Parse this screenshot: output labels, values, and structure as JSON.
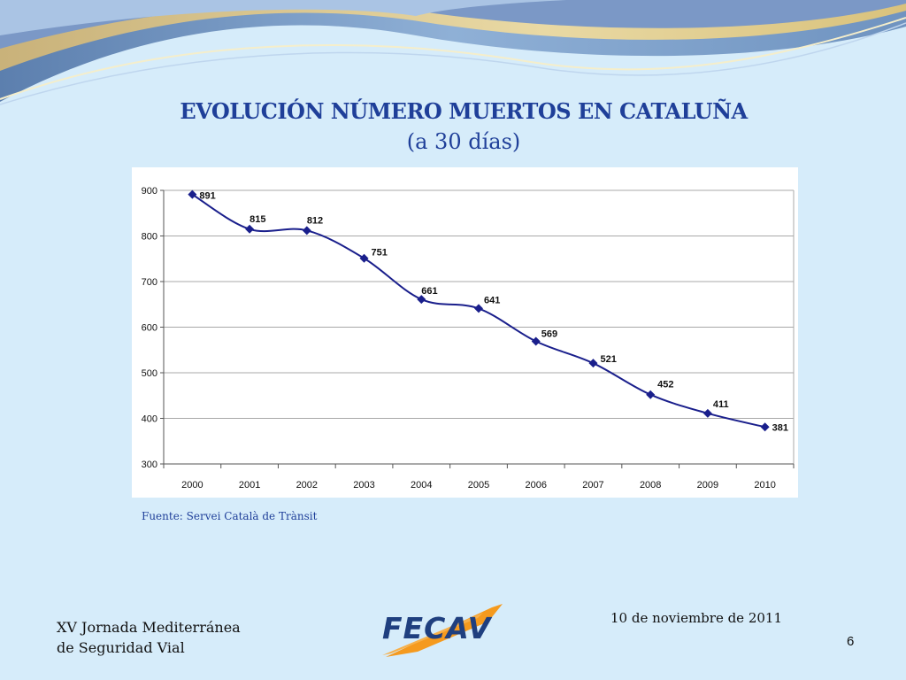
{
  "slide": {
    "title_line1": "EVOLUCIÓN NÚMERO MUERTOS EN CATALUÑA",
    "title_line2": "(a 30 días)",
    "source": "Fuente: Servei Català de Trànsit",
    "event_line1": "XV Jornada Mediterránea",
    "event_line2": "de Seguridad Vial",
    "date": "10 de noviembre de 2011",
    "page_number": "6",
    "logo_text": "FECAV"
  },
  "colors": {
    "background": "#d6ecfa",
    "title": "#1f3f99",
    "series": "#1a1f8c",
    "logo_orange": "#f59a1e",
    "logo_blue": "#1f3f7f"
  },
  "chart_data": {
    "type": "line",
    "title": "",
    "xlabel": "",
    "ylabel": "",
    "categories": [
      "2000",
      "2001",
      "2002",
      "2003",
      "2004",
      "2005",
      "2006",
      "2007",
      "2008",
      "2009",
      "2010"
    ],
    "series": [
      {
        "values": [
          891,
          815,
          812,
          751,
          661,
          641,
          569,
          521,
          452,
          411,
          381
        ]
      }
    ],
    "data_labels": [
      "891",
      "815",
      "812",
      "751",
      "661",
      "641",
      "569",
      "521",
      "452",
      "411",
      "381"
    ],
    "ylim": [
      300,
      900
    ],
    "yticks": [
      300,
      400,
      500,
      600,
      700,
      800,
      900
    ],
    "grid": "horizontal",
    "marker": "diamond",
    "smooth": true,
    "legend": "none"
  }
}
